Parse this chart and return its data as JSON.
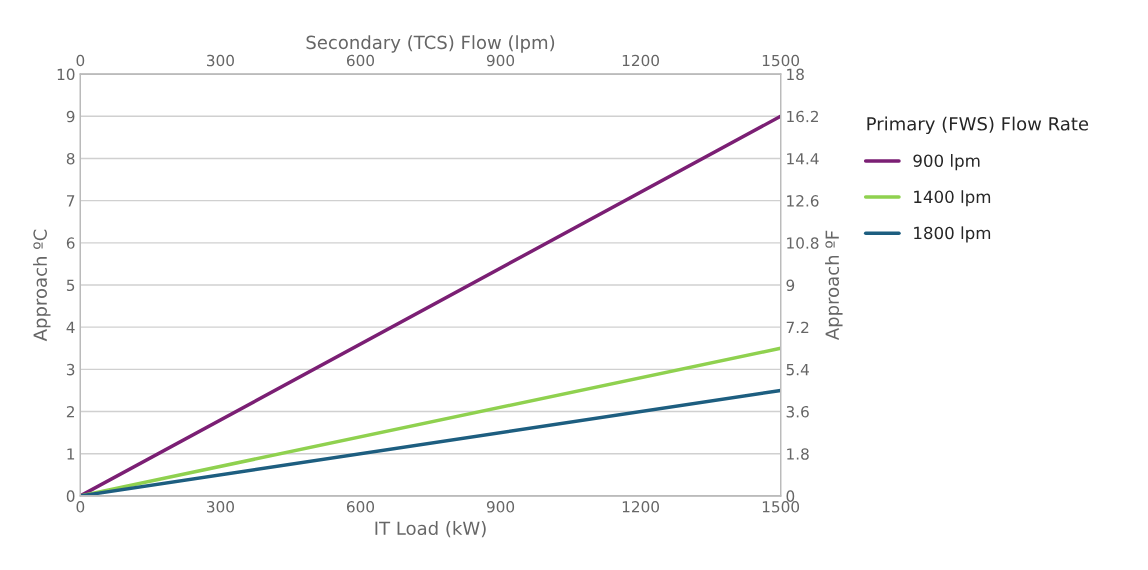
{
  "chart_data": {
    "type": "line",
    "xlabel": "IT Load (kW)",
    "ylabel": "Approach ºC",
    "y2label": "Approach ºF",
    "x2label": "Secondary (TCS) Flow (lpm)",
    "legend_title": "Primary (FWS) Flow Rate",
    "x": [
      0,
      1500
    ],
    "series": [
      {
        "name": "900 lpm",
        "color": "#7b1f74",
        "values": [
          0,
          9
        ]
      },
      {
        "name": "1400 lpm",
        "color": "#8fd14f",
        "values": [
          0,
          3.5
        ]
      },
      {
        "name": "1800 lpm",
        "color": "#1d5e80",
        "values": [
          0,
          2.5
        ]
      }
    ],
    "xlim": [
      0,
      1500
    ],
    "xticks": [
      0,
      300,
      600,
      900,
      1200,
      1500
    ],
    "x2lim": [
      0,
      1500
    ],
    "x2ticks": [
      0,
      300,
      600,
      900,
      1200,
      1500
    ],
    "ylim": [
      0,
      10
    ],
    "yticks": [
      0,
      1,
      2,
      3,
      4,
      5,
      6,
      7,
      8,
      9,
      10
    ],
    "y2lim": [
      0,
      18
    ],
    "y2ticks": [
      0,
      1.8,
      3.6,
      5.4,
      7.2,
      9,
      10.8,
      12.6,
      14.4,
      16.2,
      18
    ],
    "grid": "y",
    "legend": "right",
    "marker": "none",
    "line_style": "solid"
  }
}
